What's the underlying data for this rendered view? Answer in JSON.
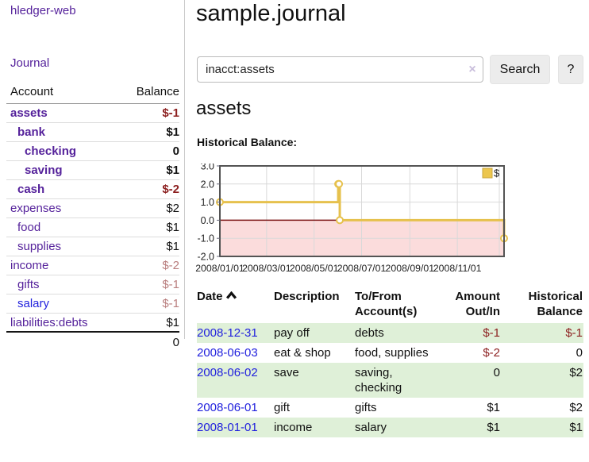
{
  "app": {
    "title": "hledger-web"
  },
  "sidebar": {
    "nav": {
      "journal": "Journal"
    },
    "accounts_table": {
      "headers": {
        "account": "Account",
        "balance": "Balance"
      },
      "rows": [
        {
          "name": "assets",
          "depth": 1,
          "bold": true,
          "link": "visited",
          "balance": "$-1",
          "balance_class": "negstrong"
        },
        {
          "name": "bank",
          "depth": 2,
          "bold": true,
          "link": "visited",
          "balance": "$1",
          "balance_class": "b"
        },
        {
          "name": "checking",
          "depth": 3,
          "bold": true,
          "link": "visited",
          "balance": "0",
          "balance_class": "b"
        },
        {
          "name": "saving",
          "depth": 3,
          "bold": true,
          "link": "visited",
          "balance": "$1",
          "balance_class": "b"
        },
        {
          "name": "cash",
          "depth": 2,
          "bold": true,
          "link": "visited",
          "balance": "$-2",
          "balance_class": "negstrong"
        },
        {
          "name": "expenses",
          "depth": 1,
          "bold": false,
          "link": "visited",
          "balance": "$2",
          "balance_class": ""
        },
        {
          "name": "food",
          "depth": 2,
          "bold": false,
          "link": "visited",
          "balance": "$1",
          "balance_class": ""
        },
        {
          "name": "supplies",
          "depth": 2,
          "bold": false,
          "link": "visited",
          "balance": "$1",
          "balance_class": ""
        },
        {
          "name": "income",
          "depth": 1,
          "bold": false,
          "link": "visited",
          "balance": "$-2",
          "balance_class": "negsoft"
        },
        {
          "name": "gifts",
          "depth": 2,
          "bold": false,
          "link": "visited",
          "balance": "$-1",
          "balance_class": "negsoft"
        },
        {
          "name": "salary",
          "depth": 2,
          "bold": false,
          "link": "unvisited",
          "balance": "$-1",
          "balance_class": "negsoft"
        },
        {
          "name": "liabilities:debts",
          "depth": 1,
          "bold": false,
          "link": "visited",
          "balance": "$1",
          "balance_class": ""
        }
      ],
      "total": "0"
    }
  },
  "main": {
    "title": "sample.journal",
    "search": {
      "value": "inacct:assets",
      "clear_glyph": "×",
      "button": "Search",
      "help": "?"
    },
    "account_heading": "assets",
    "chart_label": "Historical Balance:"
  },
  "chart_data": {
    "type": "line",
    "step": true,
    "title": "Historical Balance:",
    "series": [
      {
        "name": "$",
        "points": [
          [
            "2008-01-01",
            1
          ],
          [
            "2008-06-01",
            2
          ],
          [
            "2008-06-02",
            2
          ],
          [
            "2008-06-03",
            0
          ],
          [
            "2008-12-31",
            -1
          ]
        ]
      }
    ],
    "ylim": [
      -2,
      3
    ],
    "ytick_labels": [
      "3.0",
      "2.0",
      "1.0",
      "0.0",
      "-1.0",
      "-2.0"
    ],
    "xtick_labels": [
      "2008/01/01",
      "2008/03/01",
      "2008/05/01",
      "2008/07/01",
      "2008/09/01",
      "2008/11/01"
    ],
    "x_start": "2008-01-01",
    "x_end": "2008-12-31",
    "grid": true,
    "legend": {
      "label": "$",
      "position": "top-right"
    },
    "colors": {
      "line": "#e6c14d",
      "marker_fill": "#ffffff",
      "negative_fill": "#fbdcdc",
      "zero_line": "#7c1414",
      "grid": "#d9d9d9",
      "border": "#545454",
      "legend_fill": "#ecc64e",
      "legend_border": "#c9a63c",
      "tick": "#667"
    }
  },
  "register": {
    "columns": [
      "Date",
      "Description",
      "To/From Account(s)",
      "Amount Out/In",
      "Historical Balance"
    ],
    "rows": [
      {
        "date": "2008-12-31",
        "description": "pay off",
        "accounts": "debts",
        "amount": "$-1",
        "amount_neg": true,
        "balance": "$-1",
        "balance_neg": true,
        "green": true
      },
      {
        "date": "2008-06-03",
        "description": "eat & shop",
        "accounts": "food, supplies",
        "amount": "$-2",
        "amount_neg": true,
        "balance": "0",
        "balance_neg": false,
        "green": false
      },
      {
        "date": "2008-06-02",
        "description": "save",
        "accounts": "saving, checking",
        "amount": "0",
        "amount_neg": false,
        "balance": "$2",
        "balance_neg": false,
        "green": true
      },
      {
        "date": "2008-06-01",
        "description": "gift",
        "accounts": "gifts",
        "amount": "$1",
        "amount_neg": false,
        "balance": "$2",
        "balance_neg": false,
        "green": false
      },
      {
        "date": "2008-01-01",
        "description": "income",
        "accounts": "salary",
        "amount": "$1",
        "amount_neg": false,
        "balance": "$1",
        "balance_neg": false,
        "green": true
      }
    ]
  }
}
